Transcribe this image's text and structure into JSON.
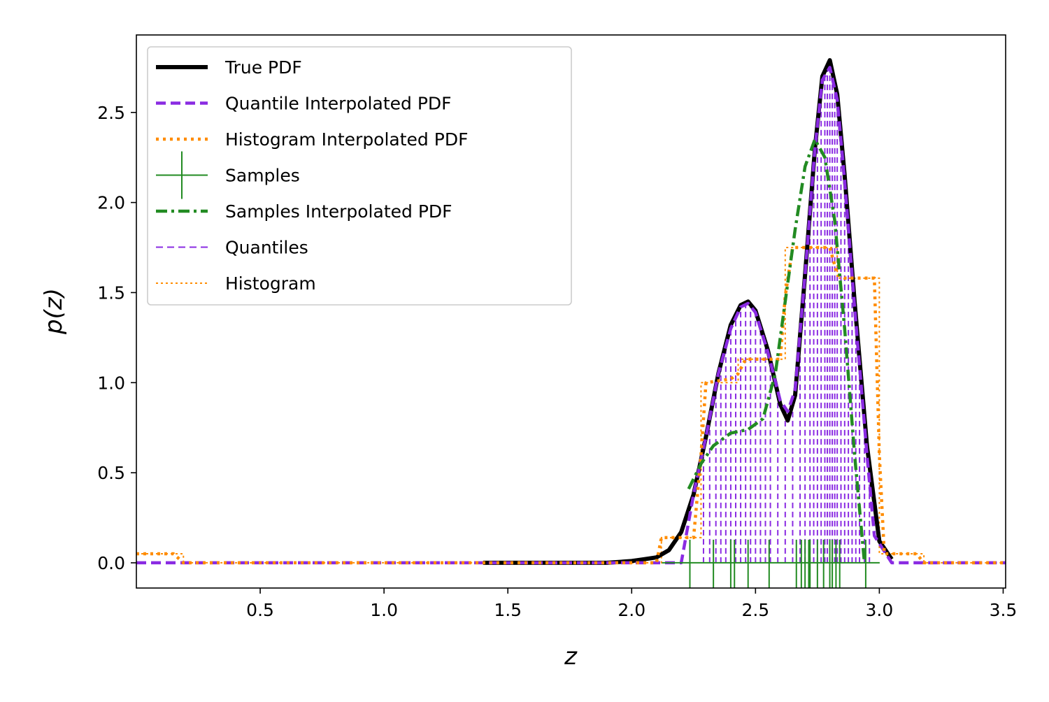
{
  "chart_data": {
    "type": "line",
    "xlabel": "z",
    "ylabel": "p(z)",
    "xlim": [
      0.0,
      3.51
    ],
    "ylim": [
      -0.14,
      2.93
    ],
    "xticks": [
      0.5,
      1.0,
      1.5,
      2.0,
      2.5,
      3.0,
      3.5
    ],
    "yticks": [
      0.0,
      0.5,
      1.0,
      1.5,
      2.0,
      2.5
    ],
    "xtick_labels": [
      "0.5",
      "1.0",
      "1.5",
      "2.0",
      "2.5",
      "3.0",
      "3.5"
    ],
    "ytick_labels": [
      "0.0",
      "0.5",
      "1.0",
      "1.5",
      "2.0",
      "2.5"
    ],
    "grid": false,
    "legend_position": "top-left",
    "legend": [
      {
        "label": "True PDF",
        "color": "#000000",
        "style": "solid-thick"
      },
      {
        "label": "Quantile Interpolated PDF",
        "color": "#8a2be2",
        "style": "dashed-thick"
      },
      {
        "label": "Histogram Interpolated PDF",
        "color": "#ff8c00",
        "style": "dotted-thick"
      },
      {
        "label": "Samples",
        "color": "#228b22",
        "style": "marker-plus"
      },
      {
        "label": "Samples Interpolated PDF",
        "color": "#228b22",
        "style": "dashdot-thick"
      },
      {
        "label": "Quantiles",
        "color": "#8a2be2",
        "style": "dashed-thin"
      },
      {
        "label": "Histogram",
        "color": "#ff8c00",
        "style": "dotted-thin"
      }
    ],
    "series": [
      {
        "name": "True PDF",
        "color": "#000000",
        "x": [
          1.4,
          1.9,
          2.0,
          2.05,
          2.1,
          2.15,
          2.2,
          2.25,
          2.3,
          2.35,
          2.4,
          2.44,
          2.47,
          2.5,
          2.55,
          2.6,
          2.63,
          2.66,
          2.7,
          2.74,
          2.77,
          2.8,
          2.83,
          2.86,
          2.9,
          2.95,
          3.0,
          3.05
        ],
        "y": [
          0.0,
          0.0,
          0.01,
          0.02,
          0.03,
          0.07,
          0.17,
          0.38,
          0.7,
          1.05,
          1.32,
          1.43,
          1.45,
          1.4,
          1.18,
          0.88,
          0.79,
          0.93,
          1.6,
          2.3,
          2.7,
          2.79,
          2.6,
          2.15,
          1.45,
          0.65,
          0.12,
          0.02
        ]
      },
      {
        "name": "Quantile Interpolated PDF",
        "color": "#8a2be2",
        "x": [
          0.0,
          2.2,
          2.25,
          2.3,
          2.35,
          2.4,
          2.44,
          2.47,
          2.5,
          2.55,
          2.6,
          2.63,
          2.66,
          2.7,
          2.74,
          2.77,
          2.8,
          2.83,
          2.86,
          2.9,
          2.95,
          2.98,
          3.05,
          3.51
        ],
        "y": [
          0.0,
          0.0,
          0.38,
          0.7,
          1.05,
          1.3,
          1.42,
          1.44,
          1.39,
          1.17,
          0.9,
          0.84,
          0.96,
          1.6,
          2.3,
          2.68,
          2.75,
          2.57,
          2.12,
          1.42,
          0.6,
          0.15,
          0.0,
          0.0
        ]
      },
      {
        "name": "Histogram Interpolated PDF",
        "color": "#ff8c00",
        "x": [
          0.0,
          0.15,
          0.19,
          2.1,
          2.12,
          2.25,
          2.28,
          2.3,
          2.4,
          2.43,
          2.46,
          2.6,
          2.62,
          2.65,
          2.8,
          2.83,
          2.86,
          2.98,
          3.0,
          3.02,
          3.15,
          3.18,
          3.51
        ],
        "y": [
          0.05,
          0.05,
          0.0,
          0.0,
          0.14,
          0.14,
          0.6,
          1.0,
          1.02,
          1.05,
          1.13,
          1.13,
          1.48,
          1.75,
          1.75,
          1.6,
          1.58,
          1.58,
          0.6,
          0.05,
          0.05,
          0.0,
          0.0
        ]
      },
      {
        "name": "Samples Interpolated PDF",
        "color": "#228b22",
        "x": [
          2.23,
          2.28,
          2.33,
          2.4,
          2.47,
          2.53,
          2.58,
          2.62,
          2.66,
          2.7,
          2.74,
          2.78,
          2.82,
          2.86,
          2.9,
          2.94
        ],
        "y": [
          0.41,
          0.55,
          0.65,
          0.72,
          0.74,
          0.8,
          1.05,
          1.45,
          1.85,
          2.2,
          2.35,
          2.25,
          1.9,
          1.3,
          0.6,
          0.0
        ]
      }
    ],
    "samples": {
      "name": "Samples",
      "color": "#228b22",
      "x": [
        2.235,
        2.33,
        2.4,
        2.415,
        2.47,
        2.555,
        2.665,
        2.685,
        2.7,
        2.715,
        2.72,
        2.75,
        2.775,
        2.8,
        2.81,
        2.825,
        2.84,
        2.945
      ],
      "y": 0.0
    },
    "quantiles": {
      "name": "Quantiles",
      "color": "#8a2be2",
      "x": [
        2.29,
        2.315,
        2.34,
        2.36,
        2.38,
        2.4,
        2.42,
        2.44,
        2.46,
        2.48,
        2.5,
        2.52,
        2.54,
        2.56,
        2.59,
        2.62,
        2.65,
        2.68,
        2.7,
        2.72,
        2.735,
        2.75,
        2.765,
        2.78,
        2.79,
        2.8,
        2.81,
        2.82,
        2.83,
        2.845,
        2.86,
        2.875,
        2.89,
        2.905,
        2.92,
        2.94,
        2.96
      ]
    },
    "histogram": {
      "name": "Histogram",
      "color": "#ff8c00",
      "edges": [
        0.0,
        0.19,
        2.12,
        2.28,
        2.43,
        2.62,
        2.83,
        3.0,
        3.18,
        3.51
      ],
      "heights": [
        0.05,
        0.0,
        0.14,
        1.0,
        1.13,
        1.75,
        1.58,
        0.05,
        0.0
      ]
    }
  }
}
